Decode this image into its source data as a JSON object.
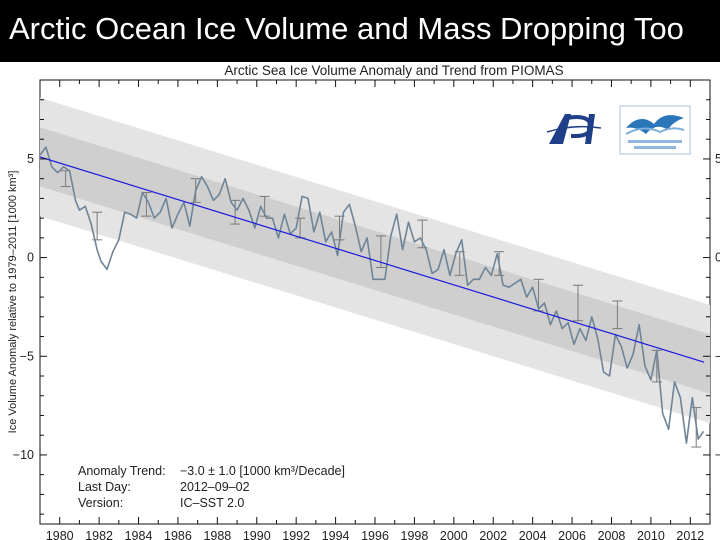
{
  "slide": {
    "title": "Arctic Ocean Ice Volume and Mass Dropping Too"
  },
  "colors": {
    "band_outer": "#e4e4e4",
    "band_inner": "#cfcfcf",
    "trend_line": "#1a1adf",
    "anomaly_line": "#6f8597",
    "error_bar": "#7a7a7a",
    "background": "#ffffff"
  },
  "icons": [
    "apl-logo",
    "polar-science-center-logo"
  ],
  "chart_data": {
    "type": "line",
    "title": "Arctic Sea Ice Volume Anomaly and Trend from PIOMAS",
    "xlabel": "",
    "ylabel": "Ice Volume Anomaly relative to 1979–2011 [1000 km³]",
    "xlim": [
      1979,
      2013
    ],
    "ylim": [
      -13.5,
      9
    ],
    "grid": false,
    "x_ticks": [
      1980,
      1982,
      1984,
      1986,
      1988,
      1990,
      1992,
      1994,
      1996,
      1998,
      2000,
      2002,
      2004,
      2006,
      2008,
      2010,
      2012
    ],
    "x_tick_labels": [
      "1980",
      "1982",
      "1984",
      "1986",
      "1988",
      "1990",
      "1992",
      "1994",
      "1996",
      "1998",
      "2000",
      "2002",
      "2004",
      "2006",
      "2008",
      "2010",
      "2012"
    ],
    "y_ticks": [
      5,
      0,
      -5,
      -10
    ],
    "y_tick_labels": [
      "5",
      "0",
      "−5",
      "−10"
    ],
    "trend": {
      "name": "Anomaly Trend",
      "x": [
        1979,
        2012.7
      ],
      "y": [
        5.1,
        -5.3
      ],
      "inner_band_halfwidth": 1.5,
      "outer_band_halfwidth": 3.0
    },
    "series": [
      {
        "name": "Ice Volume Anomaly",
        "x": [
          1979.0,
          1979.3,
          1979.6,
          1979.9,
          1980.2,
          1980.5,
          1980.8,
          1981.0,
          1981.3,
          1981.6,
          1981.9,
          1982.1,
          1982.4,
          1982.7,
          1983.0,
          1983.3,
          1983.6,
          1983.9,
          1984.2,
          1984.5,
          1984.8,
          1985.1,
          1985.4,
          1985.7,
          1986.0,
          1986.3,
          1986.6,
          1986.9,
          1987.2,
          1987.5,
          1987.8,
          1988.1,
          1988.4,
          1988.7,
          1989.0,
          1989.3,
          1989.6,
          1989.9,
          1990.2,
          1990.5,
          1990.8,
          1991.1,
          1991.4,
          1991.7,
          1992.0,
          1992.3,
          1992.6,
          1992.9,
          1993.2,
          1993.5,
          1993.8,
          1994.1,
          1994.4,
          1994.7,
          1995.0,
          1995.3,
          1995.6,
          1995.9,
          1996.2,
          1996.5,
          1996.8,
          1997.1,
          1997.4,
          1997.7,
          1998.0,
          1998.3,
          1998.6,
          1998.9,
          1999.2,
          1999.5,
          1999.8,
          2000.1,
          2000.4,
          2000.7,
          2001.0,
          2001.3,
          2001.6,
          2001.9,
          2002.2,
          2002.5,
          2002.8,
          2003.1,
          2003.4,
          2003.7,
          2004.0,
          2004.3,
          2004.6,
          2004.9,
          2005.2,
          2005.5,
          2005.8,
          2006.1,
          2006.4,
          2006.7,
          2007.0,
          2007.3,
          2007.6,
          2007.9,
          2008.2,
          2008.5,
          2008.8,
          2009.1,
          2009.4,
          2009.7,
          2010.0,
          2010.3,
          2010.6,
          2010.9,
          2011.2,
          2011.5,
          2011.8,
          2012.1,
          2012.4,
          2012.67
        ],
        "y": [
          5.2,
          5.6,
          4.6,
          4.3,
          4.6,
          4.4,
          2.9,
          2.4,
          2.6,
          1.7,
          0.4,
          -0.2,
          -0.6,
          0.3,
          0.9,
          2.3,
          2.2,
          2.0,
          3.3,
          2.8,
          2.0,
          2.3,
          3.0,
          1.5,
          2.2,
          2.8,
          1.6,
          3.4,
          4.1,
          3.6,
          2.9,
          3.2,
          4.0,
          2.8,
          2.4,
          3.0,
          2.4,
          1.5,
          2.6,
          2.0,
          2.0,
          1.0,
          2.2,
          1.2,
          1.5,
          3.1,
          3.0,
          1.3,
          2.3,
          0.8,
          1.3,
          0.1,
          2.3,
          2.7,
          1.6,
          0.3,
          1.0,
          -1.1,
          -1.1,
          -1.1,
          1.1,
          2.2,
          0.4,
          1.8,
          0.8,
          1.0,
          0.4,
          -0.8,
          -0.6,
          0.4,
          -0.9,
          0.2,
          0.9,
          -1.4,
          -1.1,
          -1.1,
          -0.5,
          -0.9,
          0.2,
          -1.4,
          -1.5,
          -1.3,
          -1.1,
          -2.0,
          -1.5,
          -2.6,
          -2.3,
          -3.4,
          -2.7,
          -3.6,
          -3.3,
          -4.4,
          -3.6,
          -4.2,
          -3.0,
          -4.1,
          -5.8,
          -6.0,
          -3.9,
          -4.5,
          -5.6,
          -4.9,
          -3.4,
          -5.5,
          -6.2,
          -4.7,
          -7.9,
          -8.7,
          -6.3,
          -7.1,
          -9.4,
          -7.1,
          -9.2,
          -8.8
        ]
      }
    ],
    "error_bars": {
      "x": [
        1980.3,
        1981.9,
        1984.4,
        1986.9,
        1988.9,
        1990.4,
        1992.2,
        1994.2,
        1996.3,
        1998.4,
        2000.3,
        2002.3,
        2004.3,
        2006.3,
        2008.3,
        2010.3,
        2012.3
      ],
      "y": [
        4.0,
        1.6,
        2.7,
        3.4,
        2.3,
        2.6,
        1.5,
        1.5,
        0.3,
        1.2,
        -0.3,
        -0.3,
        -1.9,
        -2.3,
        -2.9,
        -5.5,
        -8.6
      ],
      "err": [
        0.4,
        0.7,
        0.6,
        0.6,
        0.6,
        0.5,
        0.5,
        0.6,
        0.8,
        0.7,
        0.6,
        0.6,
        0.8,
        0.9,
        0.7,
        0.8,
        1.0
      ]
    },
    "annotations": [
      {
        "label": "Anomaly Trend:",
        "value": "−3.0 ± 1.0 [1000 km³/Decade]"
      },
      {
        "label": "Last Day:",
        "value": "2012–09–02"
      },
      {
        "label": "Version:",
        "value": "IC–SST 2.0"
      }
    ]
  }
}
